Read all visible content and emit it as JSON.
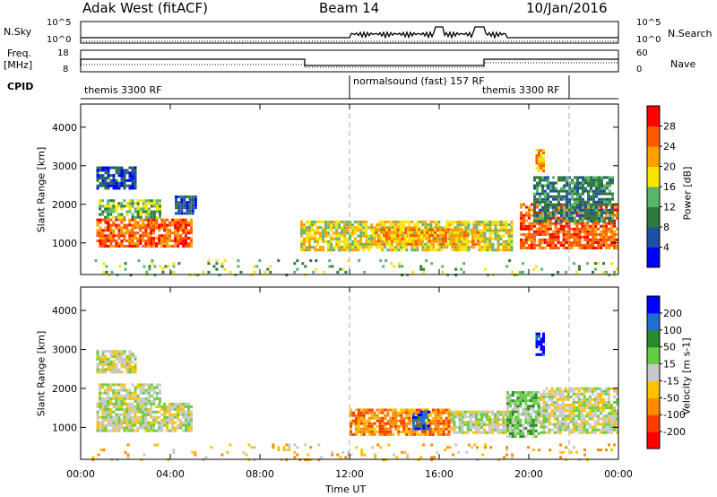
{
  "header": {
    "radar": "Adak West (fitACF)",
    "beam": "Beam 14",
    "date": "10/Jan/2016"
  },
  "nsky_panel": {
    "left_label": "N.Sky",
    "right_label": "N.Search",
    "left_ticks": [
      "10^5",
      "10^0"
    ],
    "right_ticks": [
      "10^5",
      "10^0"
    ]
  },
  "freq_panel": {
    "left_label_1": "Freq.",
    "left_label_2": "[MHz]",
    "right_label": "Nave",
    "left_ticks": [
      "18",
      "8"
    ],
    "right_ticks": [
      "60",
      "0"
    ]
  },
  "cpid": {
    "label": "CPID",
    "segments": [
      "themis 3300 RF",
      "normalsound (fast) 157 RF",
      "themis 3300 RF"
    ]
  },
  "colors": {
    "power": [
      "#0000ff",
      "#1e4fa0",
      "#2e7a3a",
      "#5ab56a",
      "#f5e600",
      "#ff9f00",
      "#ff5a00",
      "#ff0000"
    ],
    "velocity": [
      "#ff0000",
      "#ff3c00",
      "#ff8a00",
      "#ffc200",
      "#c8c8c8",
      "#66cc44",
      "#2a8a2a",
      "#1e6fd0",
      "#0000ff"
    ]
  },
  "chart_data": [
    {
      "type": "heatmap",
      "name": "power",
      "ylabel": "Slant Range [km]",
      "xlabel": "Time UT",
      "x_ticks": [
        "00:00",
        "04:00",
        "08:00",
        "12:00",
        "16:00",
        "20:00",
        "00:00"
      ],
      "x_range_hours": [
        0,
        24
      ],
      "y_ticks": [
        "1000",
        "2000",
        "3000",
        "4000"
      ],
      "ylim": [
        180,
        4600
      ],
      "colorbar": {
        "label": "Power [dB]",
        "ticks": [
          "4",
          "8",
          "12",
          "16",
          "20",
          "24",
          "28"
        ],
        "range": [
          0,
          32
        ]
      },
      "regions": [
        {
          "t0": 0.7,
          "t1": 5.0,
          "r0": 950,
          "r1": 1700,
          "level": 6
        },
        {
          "t0": 0.8,
          "t1": 3.6,
          "r0": 1700,
          "r1": 2200,
          "level": 3
        },
        {
          "t0": 0.7,
          "t1": 2.5,
          "r0": 2450,
          "r1": 3050,
          "level": 1
        },
        {
          "t0": 4.2,
          "t1": 5.2,
          "r0": 1800,
          "r1": 2300,
          "level": 1
        },
        {
          "t0": 9.8,
          "t1": 19.3,
          "r0": 850,
          "r1": 1650,
          "level": 4
        },
        {
          "t0": 13.0,
          "t1": 17.8,
          "r0": 1000,
          "r1": 1450,
          "level": 5
        },
        {
          "t0": 19.6,
          "t1": 24.0,
          "r0": 900,
          "r1": 2100,
          "level": 6
        },
        {
          "t0": 20.2,
          "t1": 23.8,
          "r0": 1600,
          "r1": 2800,
          "level": 2
        },
        {
          "t0": 20.3,
          "t1": 20.7,
          "r0": 2900,
          "r1": 3500,
          "level": 5
        },
        {
          "t0": 0.5,
          "t1": 24.0,
          "r0": 200,
          "r1": 650,
          "level": 3
        }
      ]
    },
    {
      "type": "heatmap",
      "name": "velocity",
      "ylabel": "Slant Range [km]",
      "xlabel": "Time UT",
      "x_ticks": [
        "00:00",
        "04:00",
        "08:00",
        "12:00",
        "16:00",
        "20:00",
        "00:00"
      ],
      "x_range_hours": [
        0,
        24
      ],
      "y_ticks": [
        "1000",
        "2000",
        "3000",
        "4000"
      ],
      "ylim": [
        180,
        4600
      ],
      "colorbar": {
        "label": "Velocity [m s-1]",
        "ticks": [
          "-200",
          "-100",
          "-50",
          "-15",
          "15",
          "50",
          "100",
          "200"
        ],
        "range": [
          -250,
          250
        ]
      },
      "regions": [
        {
          "t0": 0.7,
          "t1": 5.0,
          "r0": 950,
          "r1": 1700,
          "level": 4
        },
        {
          "t0": 0.8,
          "t1": 3.6,
          "r0": 1700,
          "r1": 2200,
          "level": 4
        },
        {
          "t0": 0.7,
          "t1": 2.5,
          "r0": 2450,
          "r1": 3050,
          "level": 4
        },
        {
          "t0": 12.0,
          "t1": 16.5,
          "r0": 850,
          "r1": 1550,
          "level": 2
        },
        {
          "t0": 14.8,
          "t1": 15.6,
          "r0": 1000,
          "r1": 1500,
          "level": 7
        },
        {
          "t0": 16.5,
          "t1": 19.3,
          "r0": 900,
          "r1": 1500,
          "level": 4
        },
        {
          "t0": 19.0,
          "t1": 20.5,
          "r0": 800,
          "r1": 2000,
          "level": 5
        },
        {
          "t0": 20.5,
          "t1": 24.0,
          "r0": 900,
          "r1": 2100,
          "level": 4
        },
        {
          "t0": 20.3,
          "t1": 20.7,
          "r0": 2900,
          "r1": 3500,
          "level": 8
        },
        {
          "t0": 0.5,
          "t1": 24.0,
          "r0": 200,
          "r1": 650,
          "level": 3
        }
      ]
    }
  ]
}
